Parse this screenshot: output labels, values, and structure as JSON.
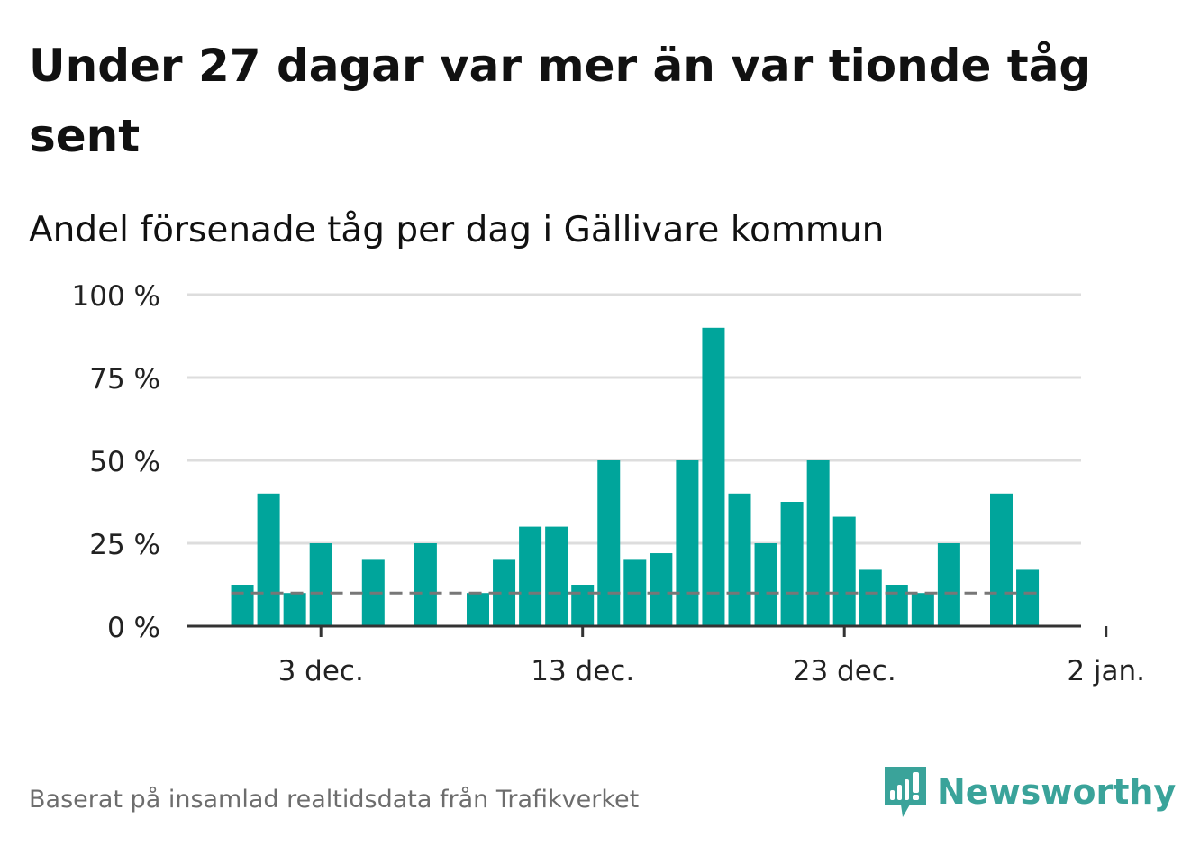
{
  "title": "Under 27 dagar var mer än var tionde tåg sent",
  "subtitle": "Andel försenade tåg per dag i Gällivare kommun",
  "source": "Baserat på insamlad realtidsdata från Trafikverket",
  "brand": {
    "name": "Newsworthy",
    "color": "#3aa39a",
    "icon": "newsworthy-logo-icon"
  },
  "colors": {
    "bar": "#00a59b",
    "reference_line": "#777777",
    "grid": "#dddddd",
    "axis": "#333333"
  },
  "chart_data": {
    "type": "bar",
    "x_start": "2023-11-29",
    "x": [
      "2023-11-30",
      "2023-12-01",
      "2023-12-02",
      "2023-12-03",
      "2023-12-04",
      "2023-12-05",
      "2023-12-06",
      "2023-12-07",
      "2023-12-08",
      "2023-12-09",
      "2023-12-10",
      "2023-12-11",
      "2023-12-12",
      "2023-12-13",
      "2023-12-14",
      "2023-12-15",
      "2023-12-16",
      "2023-12-17",
      "2023-12-18",
      "2023-12-19",
      "2023-12-20",
      "2023-12-21",
      "2023-12-22",
      "2023-12-23",
      "2023-12-24",
      "2023-12-25",
      "2023-12-26",
      "2023-12-27",
      "2023-12-28",
      "2023-12-29",
      "2023-12-30",
      "2023-12-31"
    ],
    "values": [
      12.5,
      40,
      10,
      25,
      null,
      20,
      null,
      25,
      null,
      10,
      20,
      30,
      30,
      12.5,
      50,
      20,
      22,
      50,
      90,
      40,
      25,
      37.5,
      50,
      33,
      17,
      12.5,
      10,
      25,
      null,
      40,
      17,
      null
    ],
    "reference_line": 10,
    "ylim": [
      0,
      100
    ],
    "y_ticks": [
      0,
      25,
      50,
      75,
      100
    ],
    "y_tick_labels": [
      "0 %",
      "25 %",
      "50 %",
      "75 %",
      "100 %"
    ],
    "x_ticks": [
      {
        "date": "2023-12-03",
        "label": "3 dec."
      },
      {
        "date": "2023-12-13",
        "label": "13 dec."
      },
      {
        "date": "2023-12-23",
        "label": "23 dec."
      },
      {
        "date": "2024-01-02",
        "label": "2 jan."
      }
    ],
    "grid": true,
    "legend": "none"
  }
}
